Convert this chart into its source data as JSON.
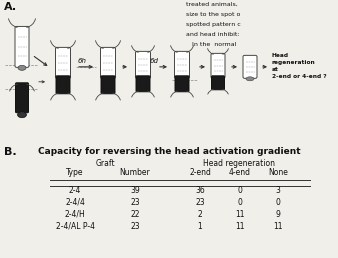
{
  "title_b": "Capacity for reversing the head activation gradient",
  "label_a": "A.",
  "label_b": "B.",
  "table_headers_graft": "Graft",
  "table_headers_head": "Head regeneration",
  "col_type": "Type",
  "col_number": "Number",
  "col_2end": "2-end",
  "col_4end": "4-end",
  "col_none": "None",
  "rows": [
    [
      "2-4",
      "39",
      "36",
      "0",
      "3"
    ],
    [
      "2-4/4",
      "23",
      "23",
      "0",
      "0"
    ],
    [
      "2-4/H",
      "22",
      "2",
      "11",
      "9"
    ],
    [
      "2-4/AL P-4",
      "23",
      "1",
      "11",
      "11"
    ]
  ],
  "arrow_label_6h": "6h",
  "arrow_label_6d": "6d",
  "head_regen_label": "Head\nregeneration\nat\n2-end or 4-end ?",
  "side_text": [
    "treated animals,",
    "size to the spot o",
    "spotted pattern c",
    "and head inhibit:",
    "   In the  normal"
  ],
  "bg_color": "#f0efea",
  "text_color": "#111111"
}
